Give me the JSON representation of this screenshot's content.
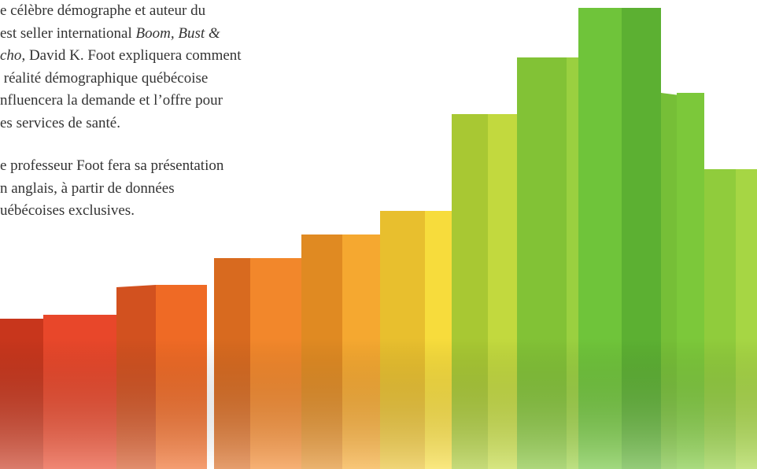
{
  "paragraphs": [
    {
      "lines": [
        [
          {
            "text": "e célèbre démographe et auteur du",
            "italic": false
          }
        ],
        [
          {
            "text": "est seller international ",
            "italic": false
          },
          {
            "text": "Boom, Bust &",
            "italic": true
          }
        ],
        [
          {
            "text": "cho",
            "italic": true
          },
          {
            "text": ", David K. Foot expliquera comment",
            "italic": false
          }
        ],
        [
          {
            "text": " réalité démographique québécoise",
            "italic": false
          }
        ],
        [
          {
            "text": "nfluencera la demande et l’offre pour",
            "italic": false
          }
        ],
        [
          {
            "text": "es services de santé.",
            "italic": false
          }
        ]
      ]
    },
    {
      "lines": [
        [
          {
            "text": "e professeur Foot fera sa présentation",
            "italic": false
          }
        ],
        [
          {
            "text": "n anglais, à partir de données",
            "italic": false
          }
        ],
        [
          {
            "text": "uébécoises exclusives.",
            "italic": false
          }
        ]
      ]
    }
  ]
}
